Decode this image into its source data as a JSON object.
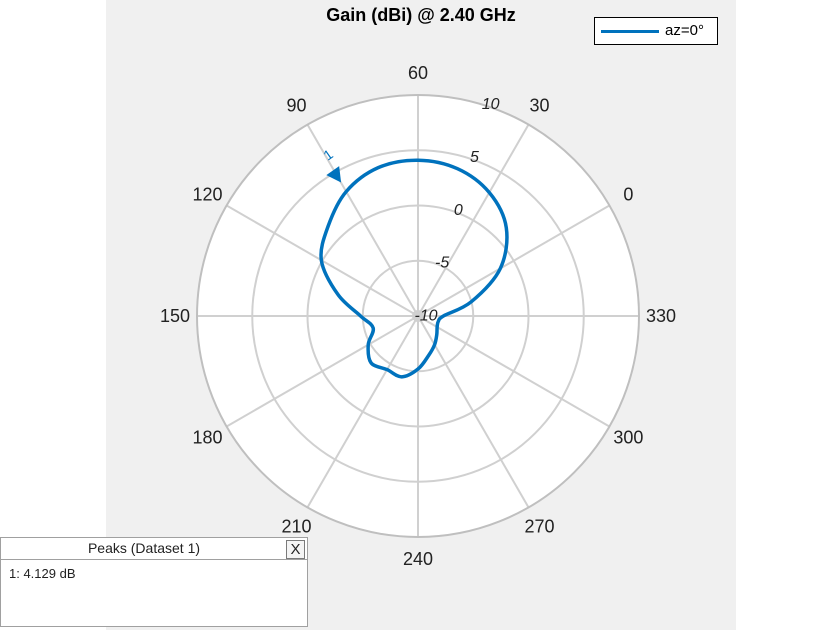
{
  "chart_data": {
    "type": "polar",
    "title": "Gain (dBi) @ 2.40 GHz",
    "theta_ticks": [
      {
        "label": "60",
        "angle_deg": 90
      },
      {
        "label": "30",
        "angle_deg": 60
      },
      {
        "label": "0",
        "angle_deg": 30
      },
      {
        "label": "330",
        "angle_deg": 0
      },
      {
        "label": "300",
        "angle_deg": -30
      },
      {
        "label": "270",
        "angle_deg": -60
      },
      {
        "label": "240",
        "angle_deg": -90
      },
      {
        "label": "210",
        "angle_deg": -120
      },
      {
        "label": "180",
        "angle_deg": -150
      },
      {
        "label": "150",
        "angle_deg": 180
      },
      {
        "label": "120",
        "angle_deg": 150
      },
      {
        "label": "90",
        "angle_deg": 120
      }
    ],
    "r_ticks": [
      -10,
      -5,
      0,
      5,
      10
    ],
    "r_tick_labels": [
      "-10",
      "-5",
      "0",
      "5",
      "10"
    ],
    "rlim": [
      -10,
      10
    ],
    "grid": true,
    "legend_position": "top-right",
    "series": [
      {
        "name": "az=0°",
        "color": "#0072bd",
        "angle_deg": [
          0,
          15,
          30,
          45,
          60,
          75,
          90,
          105,
          120,
          135,
          150,
          165,
          180,
          195,
          210,
          225,
          240,
          255,
          270,
          285,
          300,
          315,
          330,
          345
        ],
        "gain_dB": [
          -7.7,
          -5.0,
          -1.4,
          1.3,
          2.9,
          3.8,
          4.1,
          3.9,
          3.0,
          1.5,
          0.1,
          -2.5,
          -4.8,
          -5.8,
          -4.8,
          -4.0,
          -4.4,
          -4.3,
          -5.2,
          -6.3,
          -7.0,
          -7.6,
          -8.0,
          -8.1
        ]
      }
    ],
    "markers": [
      {
        "label": "1",
        "angle_deg": 120,
        "gain_dB": 4.129
      }
    ]
  },
  "peaks_panel": {
    "title": "Peaks (Dataset 1)",
    "close_label": "X",
    "entries": [
      "1: 4.129 dB"
    ]
  }
}
